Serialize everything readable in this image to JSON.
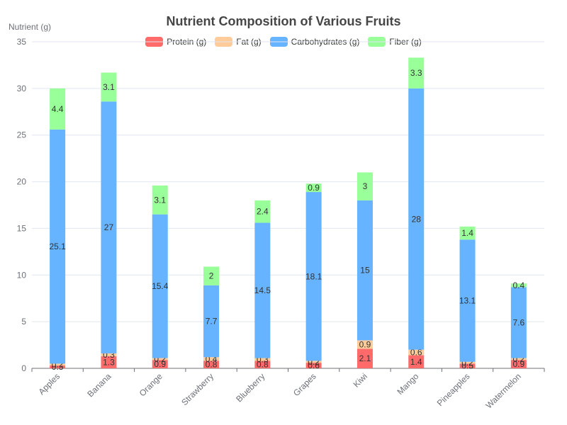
{
  "chart_data": {
    "type": "bar",
    "stacked": true,
    "title": "Nutrient Composition of Various Fruits",
    "ylabel": "Nutrient (g)",
    "xlabel": "",
    "ylim": [
      0,
      35
    ],
    "yticks": [
      0,
      5,
      10,
      15,
      20,
      25,
      30,
      35
    ],
    "grid": true,
    "legend_position": "top-center",
    "categories": [
      "Apples",
      "Banana",
      "Orange",
      "Strawberry",
      "Blueberry",
      "Grapes",
      "Kiwi",
      "Mango",
      "Pineapples",
      "Watermelon"
    ],
    "series": [
      {
        "name": "Protein (g)",
        "color": "#ff6b6b",
        "values": [
          0.3,
          1.3,
          0.9,
          0.8,
          0.8,
          0.6,
          2.1,
          1.4,
          0.5,
          0.9
        ]
      },
      {
        "name": "Fat (g)",
        "color": "#ffcc99",
        "values": [
          0.2,
          0.3,
          0.2,
          0.4,
          0.3,
          0.2,
          0.9,
          0.6,
          0.2,
          0.2
        ]
      },
      {
        "name": "Carbohydrates (g)",
        "color": "#66b3ff",
        "values": [
          25.1,
          27,
          15.4,
          7.7,
          14.5,
          18.1,
          15,
          28,
          13.1,
          7.6
        ]
      },
      {
        "name": "Fiber (g)",
        "color": "#99ff99",
        "values": [
          4.4,
          3.1,
          3.1,
          2,
          2.4,
          0.9,
          3,
          3.3,
          1.4,
          0.4
        ]
      }
    ]
  }
}
